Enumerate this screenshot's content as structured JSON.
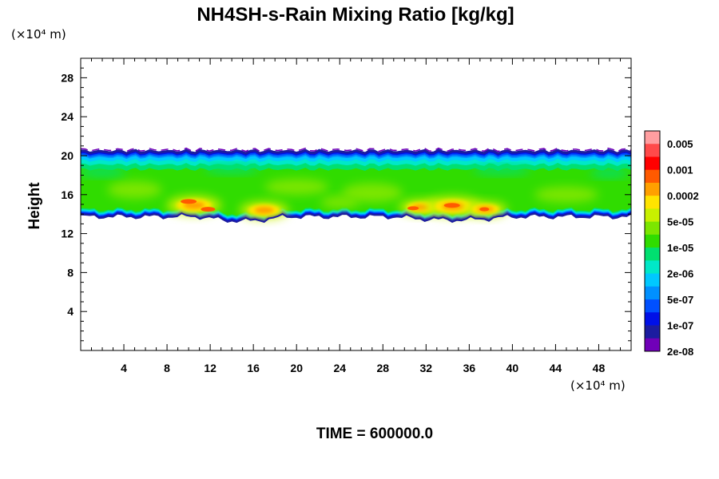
{
  "chart_data": {
    "type": "heatmap",
    "title": "NH4SH-s-Rain Mixing Ratio [kg/kg]",
    "ylabel": "Height",
    "xlabel": "",
    "x_unit": "(×10⁴ m)",
    "y_unit": "(×10⁴ m)",
    "xlim": [
      0,
      51
    ],
    "ylim": [
      0,
      30
    ],
    "x_ticks": [
      "4",
      "8",
      "12",
      "16",
      "20",
      "24",
      "28",
      "32",
      "36",
      "40",
      "44",
      "48"
    ],
    "x_tick_values": [
      4,
      8,
      12,
      16,
      20,
      24,
      28,
      32,
      36,
      40,
      44,
      48
    ],
    "y_ticks": [
      "4",
      "8",
      "12",
      "16",
      "20",
      "24",
      "28"
    ],
    "y_tick_values": [
      4,
      8,
      12,
      16,
      20,
      24,
      28
    ],
    "colorbar": {
      "levels": [
        "0.005",
        "0.001",
        "0.0002",
        "5e-05",
        "1e-05",
        "2e-06",
        "5e-07",
        "1e-07",
        "2e-08"
      ],
      "colors": [
        "#ff9ea0",
        "#ff4a4a",
        "#ff0000",
        "#ff5a00",
        "#ffa000",
        "#ffe400",
        "#c8f000",
        "#7ce600",
        "#30dc00",
        "#00e070",
        "#00e8c8",
        "#00c8ff",
        "#0090ff",
        "#0050ff",
        "#0010e8",
        "#1c1ca0",
        "#7000b8"
      ]
    },
    "layer": {
      "bottom": 13.8,
      "top": 20.4
    },
    "cores": [
      {
        "x": 10.5,
        "y": 14.9,
        "level": "0.001"
      },
      {
        "x": 17.0,
        "y": 14.4,
        "level": "0.0002"
      },
      {
        "x": 31.5,
        "y": 14.7,
        "level": "0.0002"
      },
      {
        "x": 34.5,
        "y": 14.8,
        "level": "0.001"
      },
      {
        "x": 37.5,
        "y": 14.5,
        "level": "0.0002"
      }
    ],
    "time_label": "TIME = 600000.0"
  }
}
